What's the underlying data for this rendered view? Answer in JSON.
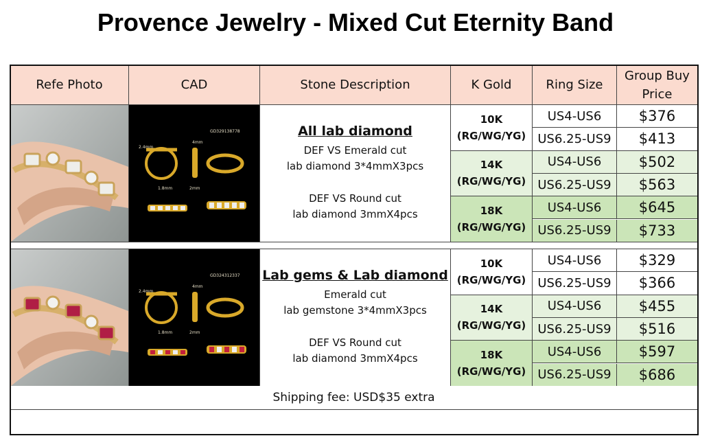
{
  "title": "Provence Jewelry - Mixed Cut Eternity Band",
  "table": {
    "headers": [
      "Refe Photo",
      "CAD",
      "Stone Description",
      "K Gold",
      "Ring Size",
      "Group Buy Price"
    ],
    "sections": [
      {
        "cad_labels": [
          "GD329138778",
          "2.4mm",
          "4mm",
          "1.8mm",
          "2mm"
        ],
        "description": {
          "heading": "All lab diamond",
          "paragraphs": [
            [
              "DEF VS Emerald cut",
              "lab diamond 3*4mmX3pcs"
            ],
            [
              "DEF VS Round cut",
              "lab diamond 3mmX4pcs"
            ]
          ]
        },
        "gold": [
          {
            "karat": "10K",
            "colors": "(RG/WG/YG)",
            "sizes": [
              {
                "size": "US4-US6",
                "price": "$376"
              },
              {
                "size": "US6.25-US9",
                "price": "$413"
              }
            ]
          },
          {
            "karat": "14K",
            "colors": "(RG/WG/YG)",
            "sizes": [
              {
                "size": "US4-US6",
                "price": "$502"
              },
              {
                "size": "US6.25-US9",
                "price": "$563"
              }
            ]
          },
          {
            "karat": "18K",
            "colors": "(RG/WG/YG)",
            "sizes": [
              {
                "size": "US4-US6",
                "price": "$645"
              },
              {
                "size": "US6.25-US9",
                "price": "$733"
              }
            ]
          }
        ]
      },
      {
        "cad_labels": [
          "GD324312337",
          "2.4mm",
          "4mm",
          "1.8mm",
          "2mm"
        ],
        "description": {
          "heading": "Lab gems & Lab diamond",
          "paragraphs": [
            [
              "Emerald cut",
              "lab gemstone 3*4mmX3pcs"
            ],
            [
              "DEF VS Round cut",
              "lab diamond 3mmX4pcs"
            ]
          ]
        },
        "gold": [
          {
            "karat": "10K",
            "colors": "(RG/WG/YG)",
            "sizes": [
              {
                "size": "US4-US6",
                "price": "$329"
              },
              {
                "size": "US6.25-US9",
                "price": "$366"
              }
            ]
          },
          {
            "karat": "14K",
            "colors": "(RG/WG/YG)",
            "sizes": [
              {
                "size": "US4-US6",
                "price": "$455"
              },
              {
                "size": "US6.25-US9",
                "price": "$516"
              }
            ]
          },
          {
            "karat": "18K",
            "colors": "(RG/WG/YG)",
            "sizes": [
              {
                "size": "US4-US6",
                "price": "$597"
              },
              {
                "size": "US6.25-US9",
                "price": "$686"
              }
            ]
          }
        ]
      }
    ],
    "footer": "Shipping fee: USD$35 extra"
  }
}
